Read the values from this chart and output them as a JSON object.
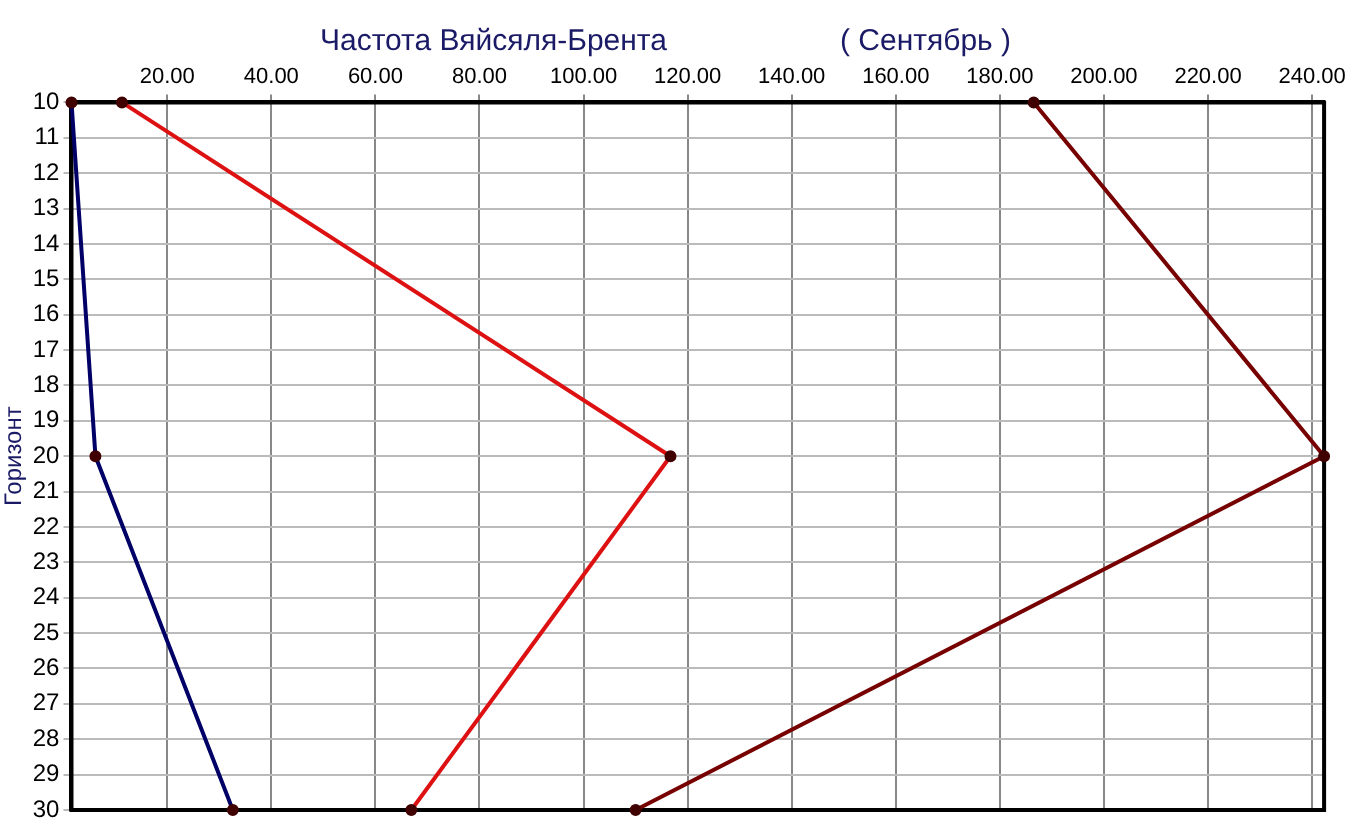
{
  "chart_data": {
    "type": "line",
    "title": "Частота Вяйсяля-Брента",
    "subtitle": "( Сентябрь )",
    "ylabel": "Горизонт",
    "xlim": [
      1.6,
      242.3
    ],
    "xticks": [
      {
        "value": 20,
        "label": "20.00"
      },
      {
        "value": 40,
        "label": "40.00"
      },
      {
        "value": 60,
        "label": "60.00"
      },
      {
        "value": 80,
        "label": "80.00"
      },
      {
        "value": 100,
        "label": "100.00"
      },
      {
        "value": 120,
        "label": "120.00"
      },
      {
        "value": 140,
        "label": "140.00"
      },
      {
        "value": 160,
        "label": "160.00"
      },
      {
        "value": 180,
        "label": "180.00"
      },
      {
        "value": 200,
        "label": "200.00"
      },
      {
        "value": 220,
        "label": "220.00"
      },
      {
        "value": 240,
        "label": "240.00"
      }
    ],
    "ylim": [
      30,
      10
    ],
    "yticks": [
      10,
      11,
      12,
      13,
      14,
      15,
      16,
      17,
      18,
      19,
      20,
      21,
      22,
      23,
      24,
      25,
      26,
      27,
      28,
      29,
      30
    ],
    "grid": true,
    "marker": "circle",
    "line_style": "solid",
    "series": [
      {
        "color": "#000066",
        "x": [
          1.6,
          6.2,
          32.6
        ],
        "values": [
          10,
          20,
          30
        ]
      },
      {
        "color": "#dd1111",
        "x": [
          11.3,
          116.7,
          66.9
        ],
        "values": [
          10,
          20,
          30
        ]
      },
      {
        "color": "#770000",
        "x": [
          186.5,
          242.3,
          110.0
        ],
        "values": [
          10,
          20,
          30
        ]
      }
    ]
  }
}
